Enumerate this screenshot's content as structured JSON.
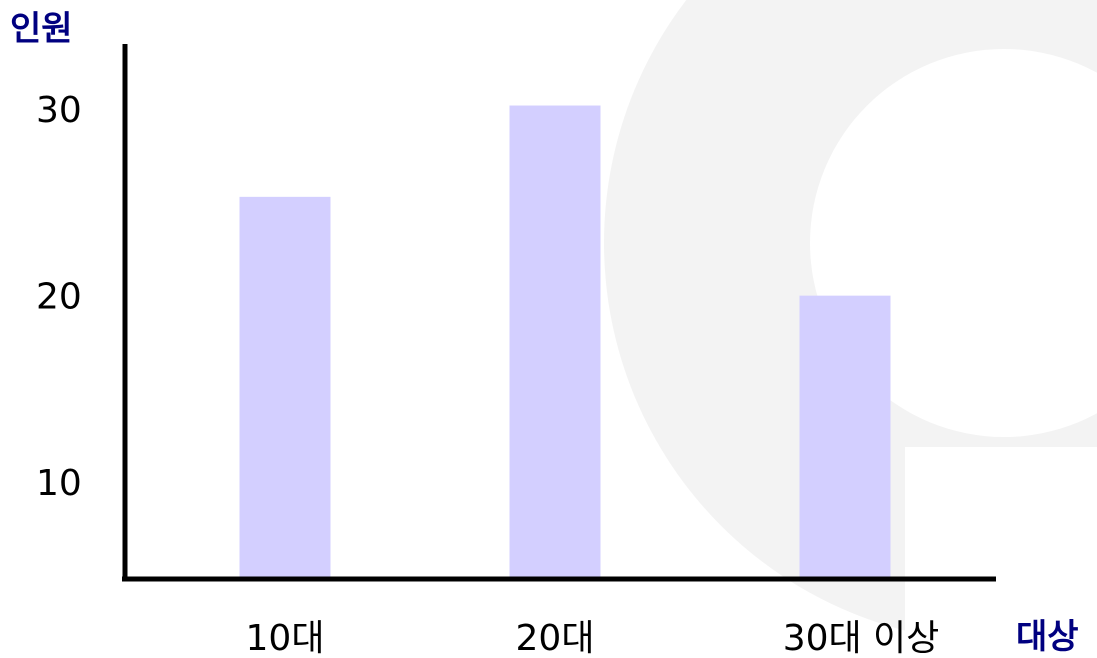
{
  "chart_data": {
    "type": "bar",
    "categories": [
      "10대",
      "20대",
      "30대 이상"
    ],
    "values": [
      25.3,
      30.2,
      20.0
    ],
    "yticks": [
      10,
      20,
      30
    ],
    "ylim": [
      4.8,
      33.5
    ],
    "ylabel": "인원",
    "xlabel": "대상",
    "grid": false,
    "legend": "none"
  },
  "colors": {
    "bar": "#d3cfff",
    "axis": "#000000",
    "axis_title": "#000080",
    "background_circle": "#f3f3f3"
  }
}
